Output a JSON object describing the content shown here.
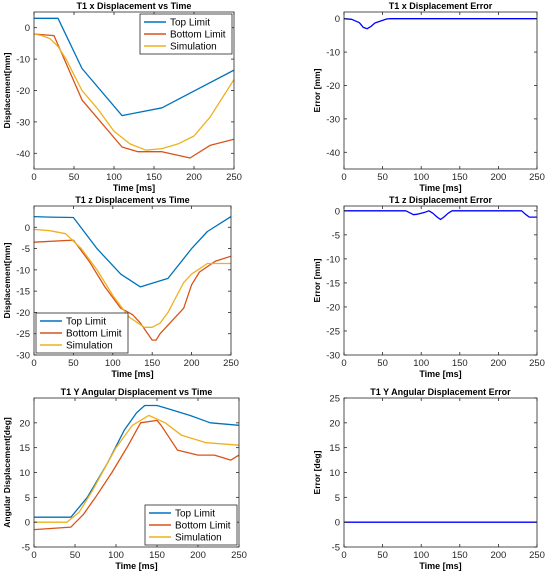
{
  "colors": {
    "top_limit": "#0072BD",
    "bottom_limit": "#D95319",
    "simulation": "#EDB120",
    "error": "#0000FF",
    "axis": "#262626",
    "grid": "#e6e6e6"
  },
  "chart_data": [
    {
      "type": "line",
      "title": "T1 x Displacement vs Time",
      "xlabel": "Time [ms]",
      "ylabel": "Displacement[mm]",
      "xlim": [
        0,
        250
      ],
      "ylim": [
        -45,
        5
      ],
      "xticks": [
        0,
        50,
        100,
        150,
        200,
        250
      ],
      "yticks": [
        0,
        -10,
        -20,
        -30,
        -40
      ],
      "legend": "top-right",
      "series": [
        {
          "name": "Top Limit",
          "color_key": "top_limit",
          "x": [
            0,
            30,
            60,
            110,
            160,
            250
          ],
          "y": [
            3,
            3,
            -13,
            -28,
            -25.5,
            -13.5
          ]
        },
        {
          "name": "Bottom Limit",
          "color_key": "bottom_limit",
          "x": [
            0,
            25,
            60,
            110,
            130,
            160,
            195,
            220,
            250
          ],
          "y": [
            -2,
            -2.5,
            -23,
            -38,
            -39.5,
            -39.5,
            -41.5,
            -37.5,
            -35.5
          ]
        },
        {
          "name": "Simulation",
          "color_key": "simulation",
          "x": [
            0,
            10,
            20,
            30,
            40,
            60,
            80,
            100,
            120,
            140,
            160,
            180,
            200,
            220,
            250
          ],
          "y": [
            -2,
            -2.5,
            -3.5,
            -6,
            -10,
            -20,
            -26,
            -33,
            -37,
            -39,
            -38.5,
            -37,
            -34.5,
            -28.5,
            -16.5
          ]
        }
      ]
    },
    {
      "type": "line",
      "title": "T1 x Displacement Error",
      "xlabel": "Time [ms]",
      "ylabel": "Error [mm]",
      "xlim": [
        0,
        250
      ],
      "ylim": [
        -45,
        2
      ],
      "xticks": [
        0,
        50,
        100,
        150,
        200,
        250
      ],
      "yticks": [
        0,
        -10,
        -20,
        -30,
        -40
      ],
      "series": [
        {
          "color_key": "error",
          "x": [
            0,
            10,
            20,
            25,
            30,
            35,
            40,
            50,
            55,
            60,
            250
          ],
          "y": [
            0,
            -0.2,
            -1.2,
            -2.6,
            -3,
            -2.3,
            -1.3,
            -0.5,
            -0.1,
            0,
            0
          ]
        }
      ]
    },
    {
      "type": "line",
      "title": "T1 z Displacement vs Time",
      "xlabel": "Time [ms]",
      "ylabel": "Displacement[mm]",
      "xlim": [
        0,
        250
      ],
      "ylim": [
        -30,
        5
      ],
      "xticks": [
        0,
        50,
        100,
        150,
        200,
        250
      ],
      "yticks": [
        0,
        -5,
        -10,
        -15,
        -20,
        -25,
        -30
      ],
      "legend": "bottom-left",
      "series": [
        {
          "name": "Top Limit",
          "color_key": "top_limit",
          "x": [
            0,
            20,
            50,
            80,
            110,
            135,
            170,
            200,
            220,
            250
          ],
          "y": [
            2.5,
            2.4,
            2.3,
            -5,
            -11,
            -14,
            -12,
            -5,
            -1,
            2.5
          ]
        },
        {
          "name": "Bottom Limit",
          "color_key": "bottom_limit",
          "x": [
            0,
            50,
            70,
            90,
            110,
            125,
            135,
            150,
            155,
            160,
            175,
            190,
            200,
            210,
            230,
            250
          ],
          "y": [
            -3.5,
            -3,
            -8,
            -14,
            -19,
            -20.5,
            -22.5,
            -26.5,
            -26.5,
            -25,
            -22,
            -19,
            -13.5,
            -10.5,
            -8,
            -6.8
          ]
        },
        {
          "name": "Simulation",
          "color_key": "simulation",
          "x": [
            0,
            20,
            40,
            60,
            80,
            100,
            120,
            140,
            150,
            160,
            170,
            180,
            190,
            200,
            220,
            250
          ],
          "y": [
            -0.5,
            -0.8,
            -1.5,
            -5,
            -10,
            -16,
            -21,
            -23.5,
            -23.5,
            -22.5,
            -20,
            -16.5,
            -13,
            -11,
            -8.5,
            -8.5
          ]
        }
      ]
    },
    {
      "type": "line",
      "title": "T1 z Displacement Error",
      "xlabel": "Time [ms]",
      "ylabel": "Error [mm]",
      "xlim": [
        0,
        250
      ],
      "ylim": [
        -30,
        1
      ],
      "xticks": [
        0,
        50,
        100,
        150,
        200,
        250
      ],
      "yticks": [
        0,
        -5,
        -10,
        -15,
        -20,
        -25,
        -30
      ],
      "series": [
        {
          "color_key": "error",
          "x": [
            0,
            80,
            85,
            90,
            95,
            100,
            105,
            110,
            115,
            120,
            125,
            130,
            135,
            140,
            145,
            230,
            235,
            240,
            250
          ],
          "y": [
            0,
            0,
            -0.4,
            -0.8,
            -0.7,
            -0.5,
            -0.3,
            0,
            -0.5,
            -1.2,
            -1.8,
            -1.2,
            -0.5,
            0,
            0,
            0,
            -0.7,
            -1.3,
            -1.3
          ]
        }
      ]
    },
    {
      "type": "line",
      "title": "T1 Y Angular Displacement vs Time",
      "xlabel": "Time [ms]",
      "ylabel": "Angular Displacement[deg]",
      "xlim": [
        0,
        250
      ],
      "ylim": [
        -5,
        25
      ],
      "xticks": [
        0,
        50,
        100,
        150,
        200,
        250
      ],
      "yticks": [
        -5,
        0,
        5,
        10,
        15,
        20
      ],
      "legend": "bottom-right",
      "series": [
        {
          "name": "Top Limit",
          "color_key": "top_limit",
          "x": [
            0,
            45,
            65,
            90,
            110,
            125,
            135,
            150,
            160,
            190,
            215,
            250
          ],
          "y": [
            1,
            1,
            5,
            12,
            18.5,
            22,
            23.5,
            23.5,
            23,
            21.5,
            20,
            19.5
          ]
        },
        {
          "name": "Bottom Limit",
          "color_key": "bottom_limit",
          "x": [
            0,
            45,
            60,
            75,
            95,
            115,
            130,
            150,
            155,
            165,
            175,
            200,
            220,
            240,
            250
          ],
          "y": [
            -1.5,
            -1,
            1.5,
            5,
            10,
            15.5,
            20,
            20.5,
            19.5,
            17,
            14.5,
            13.5,
            13.5,
            12.5,
            13.5
          ]
        },
        {
          "name": "Simulation",
          "color_key": "simulation",
          "x": [
            0,
            40,
            55,
            70,
            85,
            100,
            120,
            140,
            160,
            180,
            210,
            250
          ],
          "y": [
            0,
            0,
            2,
            6,
            10.5,
            15,
            19.5,
            21.5,
            20,
            17.5,
            16,
            15.5
          ]
        }
      ]
    },
    {
      "type": "line",
      "title": "T1 Y Angular Displacement Error",
      "xlabel": "Time [ms]",
      "ylabel": "Error [deg]",
      "xlim": [
        0,
        250
      ],
      "ylim": [
        -5,
        25
      ],
      "xticks": [
        0,
        50,
        100,
        150,
        200,
        250
      ],
      "yticks": [
        -5,
        0,
        5,
        10,
        15,
        20,
        25
      ],
      "series": [
        {
          "color_key": "error",
          "x": [
            0,
            250
          ],
          "y": [
            0,
            0
          ]
        }
      ]
    }
  ]
}
